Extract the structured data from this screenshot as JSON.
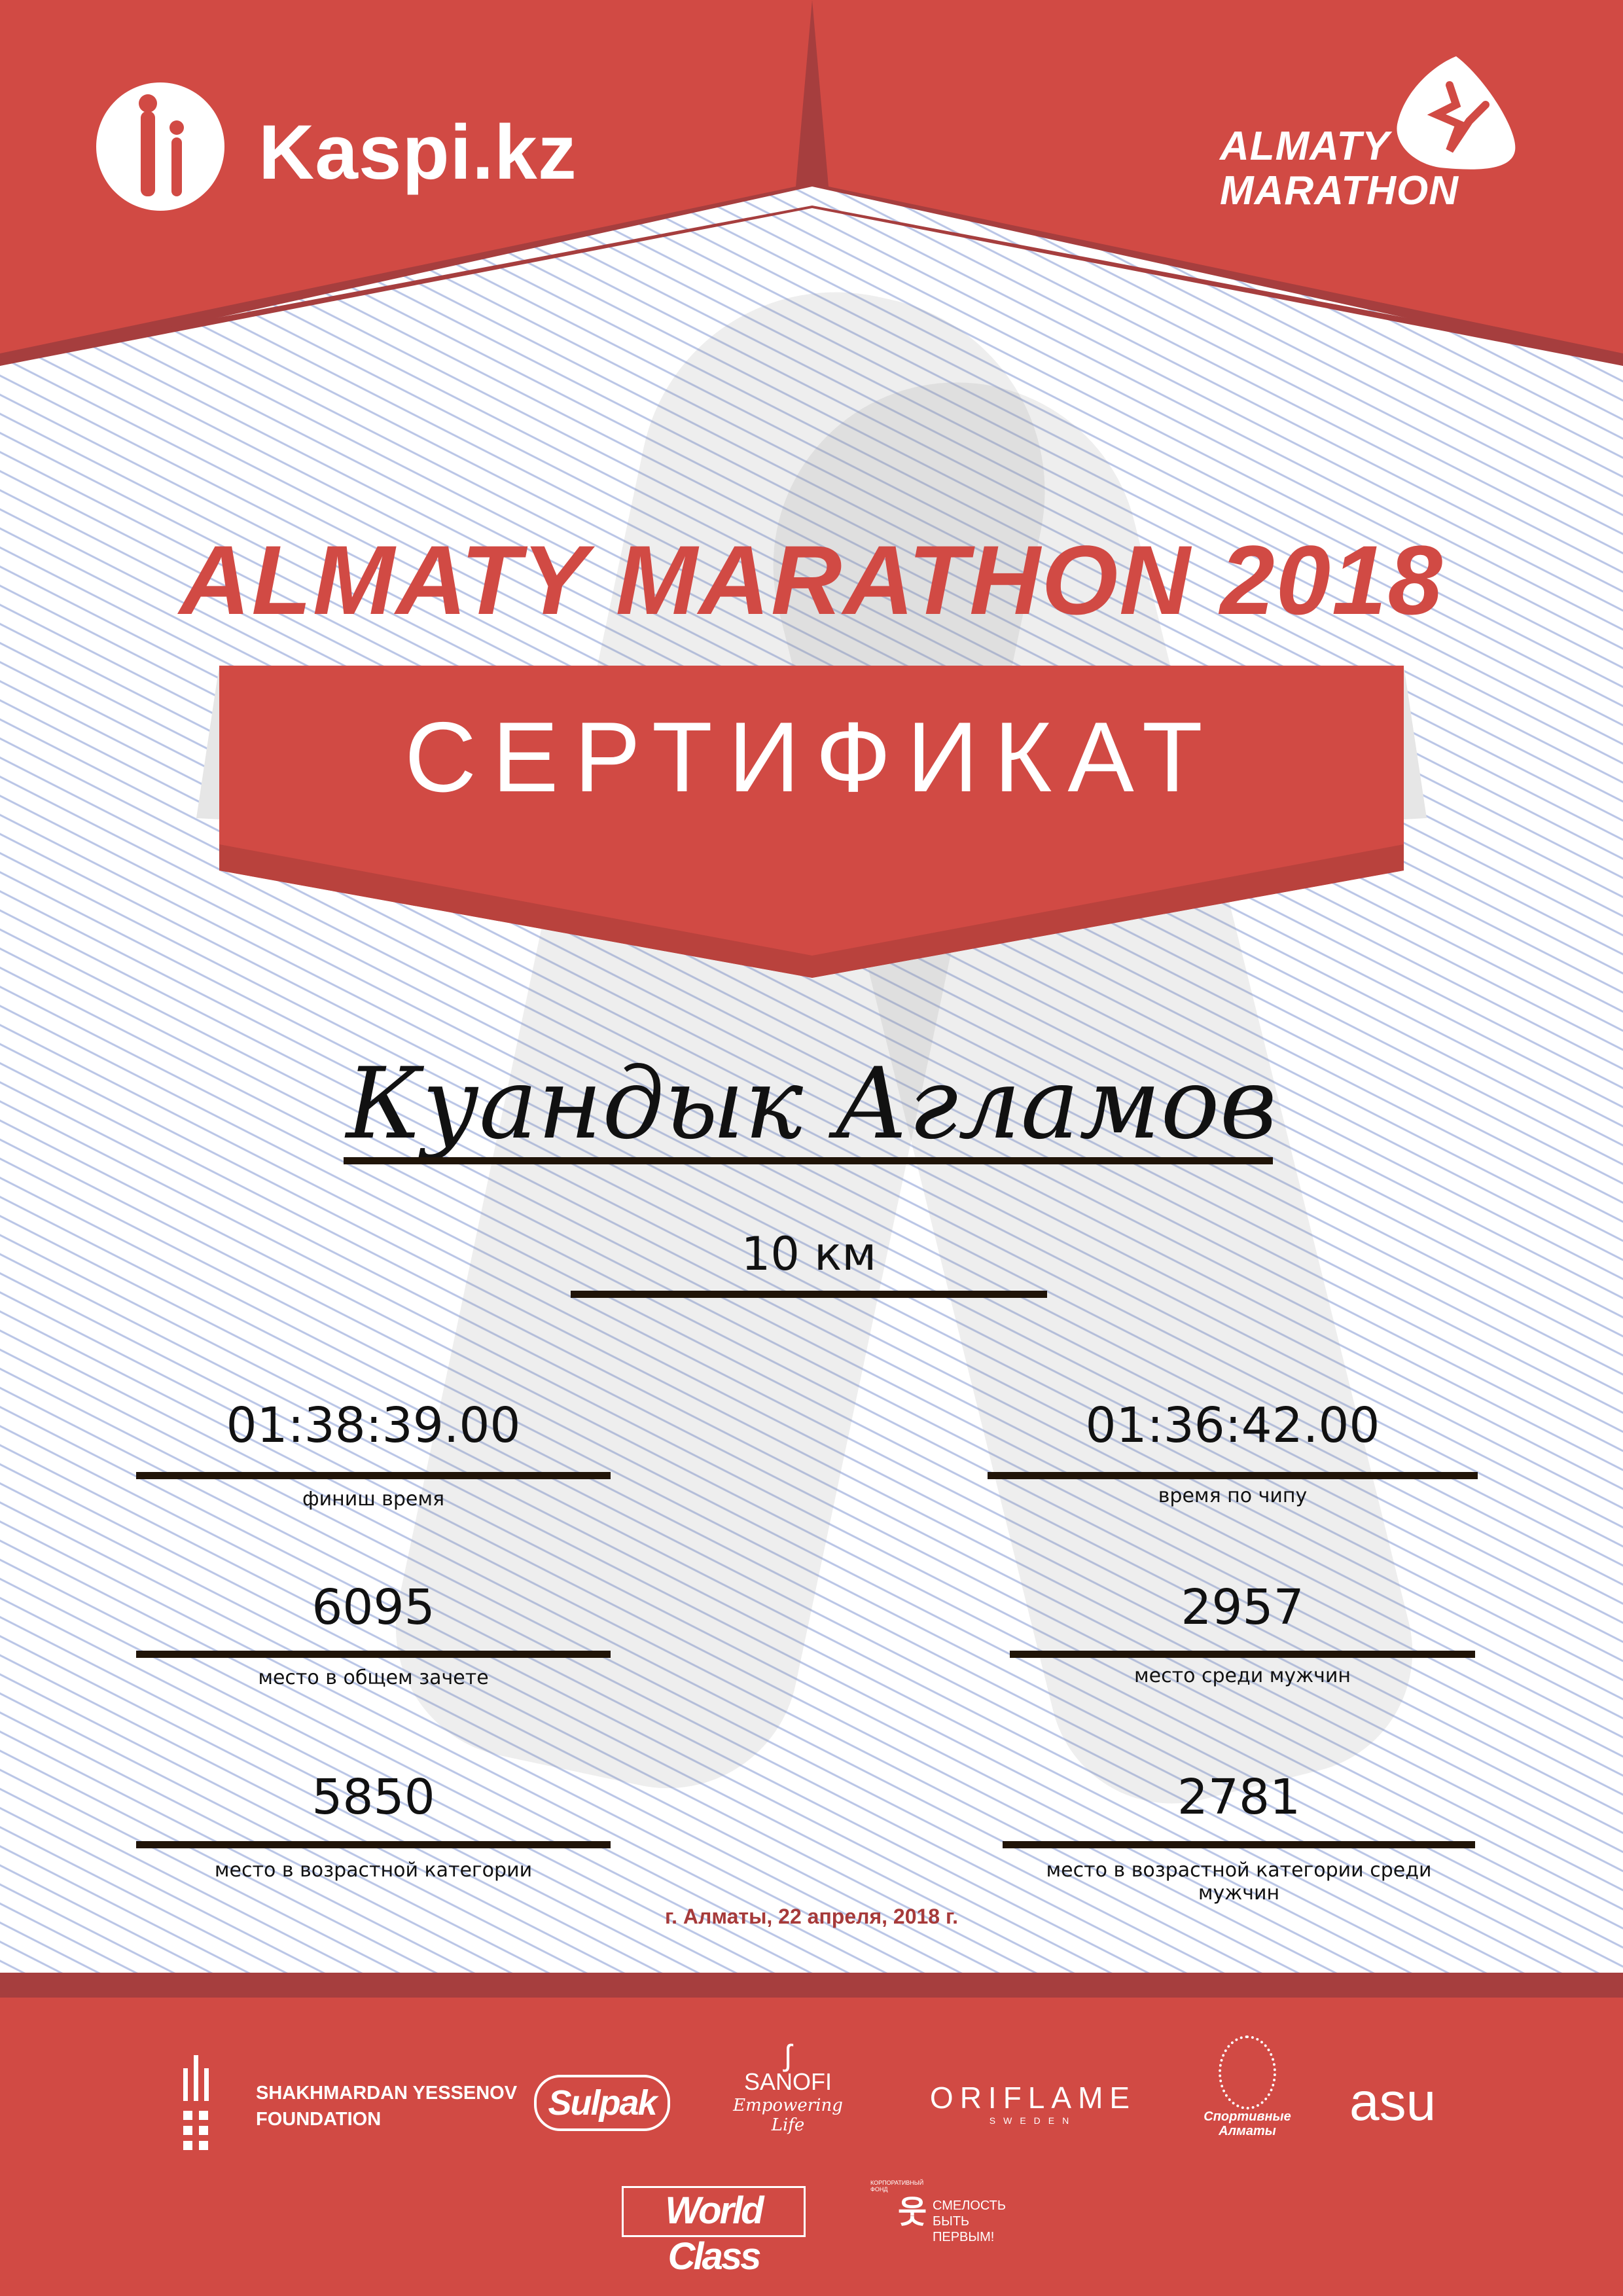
{
  "header": {
    "sponsor_logo": "Kaspi.kz",
    "event_logo_line1": "ALMATY",
    "event_logo_line2": "MARATHON"
  },
  "title": "ALMATY MARATHON 2018",
  "banner": "СЕРТИФИКАТ",
  "participant": {
    "name": "Куандык Агламов",
    "distance": "10 км"
  },
  "results": [
    {
      "value": "01:38:39.00",
      "label": "финиш время"
    },
    {
      "value": "01:36:42.00",
      "label": "время по чипу"
    },
    {
      "value": "6095",
      "label": "место в общем зачете"
    },
    {
      "value": "2957",
      "label": "место среди мужчин"
    },
    {
      "value": "5850",
      "label": "место в возрастной категории"
    },
    {
      "value": "2781",
      "label": "место в возрастной категории среди мужчин"
    }
  ],
  "date": "г. Алматы, 22 апреля, 2018 г.",
  "partners": {
    "yessenov_line1": "SHAKHMARDAN YESSENOV",
    "yessenov_line2": "FOUNDATION",
    "sulpak": "Sulpak",
    "sanofi": "SANOFI",
    "sanofi_tagline": "Empowering Life",
    "oriflame": "ORIFLAME",
    "oriflame_sub": "SWEDEN",
    "sport_almaty": "Спортивные Алматы",
    "asu": "asu",
    "world_class": "World Class",
    "courage_line1": "СМЕЛОСТЬ",
    "courage_line2": "БЫТЬ",
    "courage_line3": "ПЕРВЫМ!",
    "courage_ring": "КОРПОРАТИВНЫЙ ФОНД"
  },
  "colors": {
    "brand_red": "#d14a44",
    "dark_red": "#a63e3e",
    "date_red": "#a63a3a",
    "line_blue": "#b9c5e6"
  }
}
